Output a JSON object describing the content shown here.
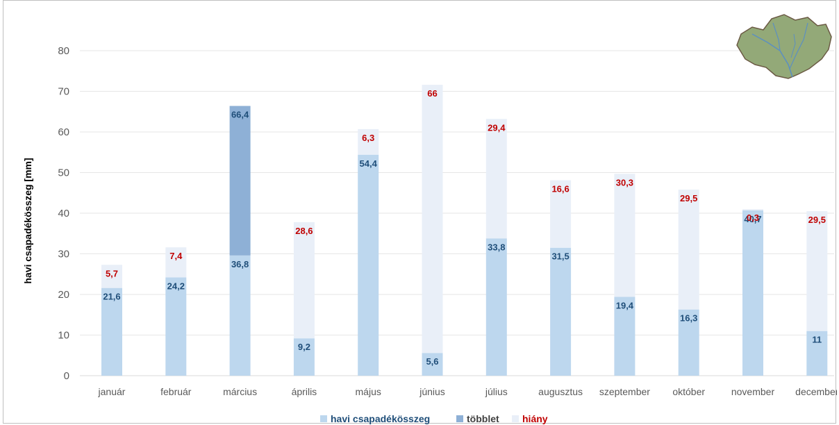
{
  "chart_data": {
    "type": "bar",
    "stacked": true,
    "ylabel": "havi csapadékösszeg [mm]",
    "ylim": [
      0,
      80
    ],
    "yticks": [
      0,
      10,
      20,
      30,
      40,
      50,
      60,
      70,
      80
    ],
    "grid": true,
    "legend_position": "bottom",
    "categories": [
      "január",
      "február",
      "március",
      "április",
      "május",
      "június",
      "július",
      "augusztus",
      "szeptember",
      "október",
      "november",
      "december"
    ],
    "series": [
      {
        "name": "havi csapadékösszeg",
        "color": "#bdd7ee",
        "values": [
          21.6,
          24.2,
          29.6,
          9.2,
          54.4,
          5.6,
          33.8,
          31.5,
          19.4,
          16.3,
          40.7,
          11
        ]
      },
      {
        "name": "többlet",
        "color": "#8eb0d6",
        "values": [
          0,
          0,
          36.8,
          0,
          0,
          0,
          0,
          0,
          0,
          0,
          0,
          0
        ]
      },
      {
        "name": "hiány",
        "color": "#e9eff8",
        "values": [
          5.7,
          7.4,
          0,
          28.6,
          6.3,
          66,
          29.4,
          16.6,
          30.3,
          29.5,
          0.3,
          29.5
        ]
      }
    ],
    "data_labels": {
      "total": [
        "21,6",
        "24,2",
        "36,8",
        "9,2",
        "54,4",
        "5,6",
        "33,8",
        "31,5",
        "19,4",
        "16,3",
        "40,7",
        "11"
      ],
      "top": [
        "5,7",
        "7,4",
        "66,4",
        "28,6",
        "6,3",
        "66",
        "29,4",
        "16,6",
        "30,3",
        "29,5",
        "0,3",
        "29,5"
      ],
      "total_color": "#1f4e79",
      "deficit_color": "#c00000"
    }
  },
  "map_icon": "catchment-map-icon"
}
